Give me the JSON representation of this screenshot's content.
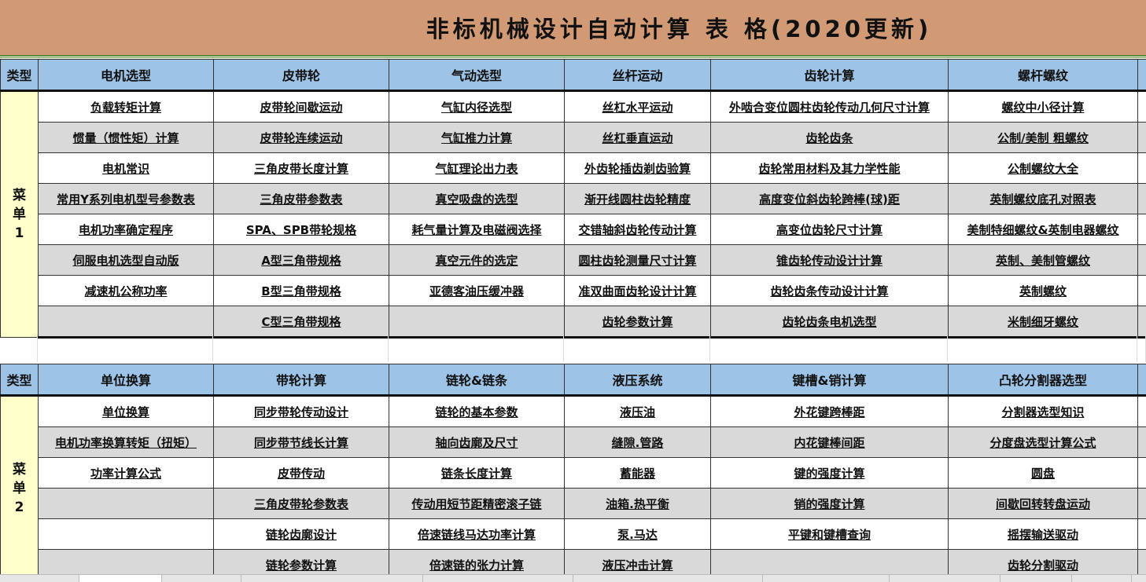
{
  "title": "非标机械设计自动计算 表 格(2020更新)",
  "colors": {
    "title_band": "#D19A74",
    "header": "#9DC3E6",
    "type_cell": "#FFFFCC",
    "alt_row": "#D9D9D9"
  },
  "type_label": "类型",
  "menus": [
    {
      "name": "菜单1",
      "type_chars": [
        "菜",
        "单",
        "1"
      ],
      "headers": [
        "电机选型",
        "皮带轮",
        "气动选型",
        "丝杆运动",
        "齿轮计算",
        "螺杆螺纹"
      ],
      "rows": [
        [
          "负载转矩计算",
          "皮带轮间歇运动",
          "气缸内径选型",
          "丝杠水平运动",
          "外啮合变位圆柱齿轮传动几何尺寸计算",
          "螺纹中小径计算"
        ],
        [
          "惯量（惯性矩）计算",
          "皮带轮连续运动",
          "气缸推力计算",
          "丝杠垂直运动",
          "齿轮齿条",
          "公制/美制 粗螺纹"
        ],
        [
          "电机常识",
          "三角皮带长度计算",
          "气缸理论出力表",
          "外齿轮插齿剃齿验算",
          "齿轮常用材料及其力学性能",
          "公制螺纹大全"
        ],
        [
          "常用Y系列电机型号参数表",
          "三角皮带参数表",
          "真空吸盘的选型",
          "渐开线圆柱齿轮精度",
          "高度变位斜齿轮跨棒(球)距",
          "英制螺纹底孔对照表"
        ],
        [
          "电机功率确定程序",
          "SPA、SPB带轮规格",
          "耗气量计算及电磁阀选择",
          "交错轴斜齿轮传动计算",
          "高变位齿轮尺寸计算",
          "美制特细螺纹&英制电器螺纹"
        ],
        [
          "伺服电机选型自动版",
          "A型三角带规格",
          "真空元件的选定",
          "圆柱齿轮测量尺寸计算",
          "锥齿轮传动设计计算",
          "英制、美制管螺纹"
        ],
        [
          "减速机公称功率",
          "B型三角带规格",
          "亚德客油压缓冲器",
          "准双曲面齿轮设计计算",
          "齿轮齿条传动设计计算",
          "英制螺纹"
        ],
        [
          "",
          "C型三角带规格",
          "",
          "齿轮参数计算",
          "齿轮齿条电机选型",
          "米制细牙螺纹"
        ]
      ]
    },
    {
      "name": "菜单2",
      "type_chars": [
        "菜",
        "单",
        "2"
      ],
      "headers": [
        "单位换算",
        "带轮计算",
        "链轮&链条",
        "液压系统",
        "键槽&销计算",
        "凸轮分割器选型"
      ],
      "rows": [
        [
          "单位换算",
          "同步带轮传动设计",
          "链轮的基本参数",
          "液压油",
          "外花键跨棒距",
          "分割器选型知识"
        ],
        [
          "电机功率换算转矩（扭矩）",
          "同步带节线长计算",
          "轴向齿廓及尺寸",
          "缝隙.管路",
          "内花键棒间距",
          "分度盘选型计算公式"
        ],
        [
          "功率计算公式",
          "皮带传动",
          "链条长度计算",
          "蓄能器",
          "键的强度计算",
          "圆盘"
        ],
        [
          "",
          "三角皮带轮参数表",
          "传动用短节距精密滚子链",
          "油箱.热平衡",
          "销的强度计算",
          "间歇回转转盘运动"
        ],
        [
          "",
          "链轮齿廓设计",
          "倍速链线马达功率计算",
          "泵.马达",
          "平键和键槽查询",
          "摇摆输送驱动"
        ],
        [
          "",
          "链轮参数计算",
          "倍速链的张力计算",
          "液压冲击计算",
          "",
          "齿轮分割驱动"
        ]
      ]
    }
  ]
}
